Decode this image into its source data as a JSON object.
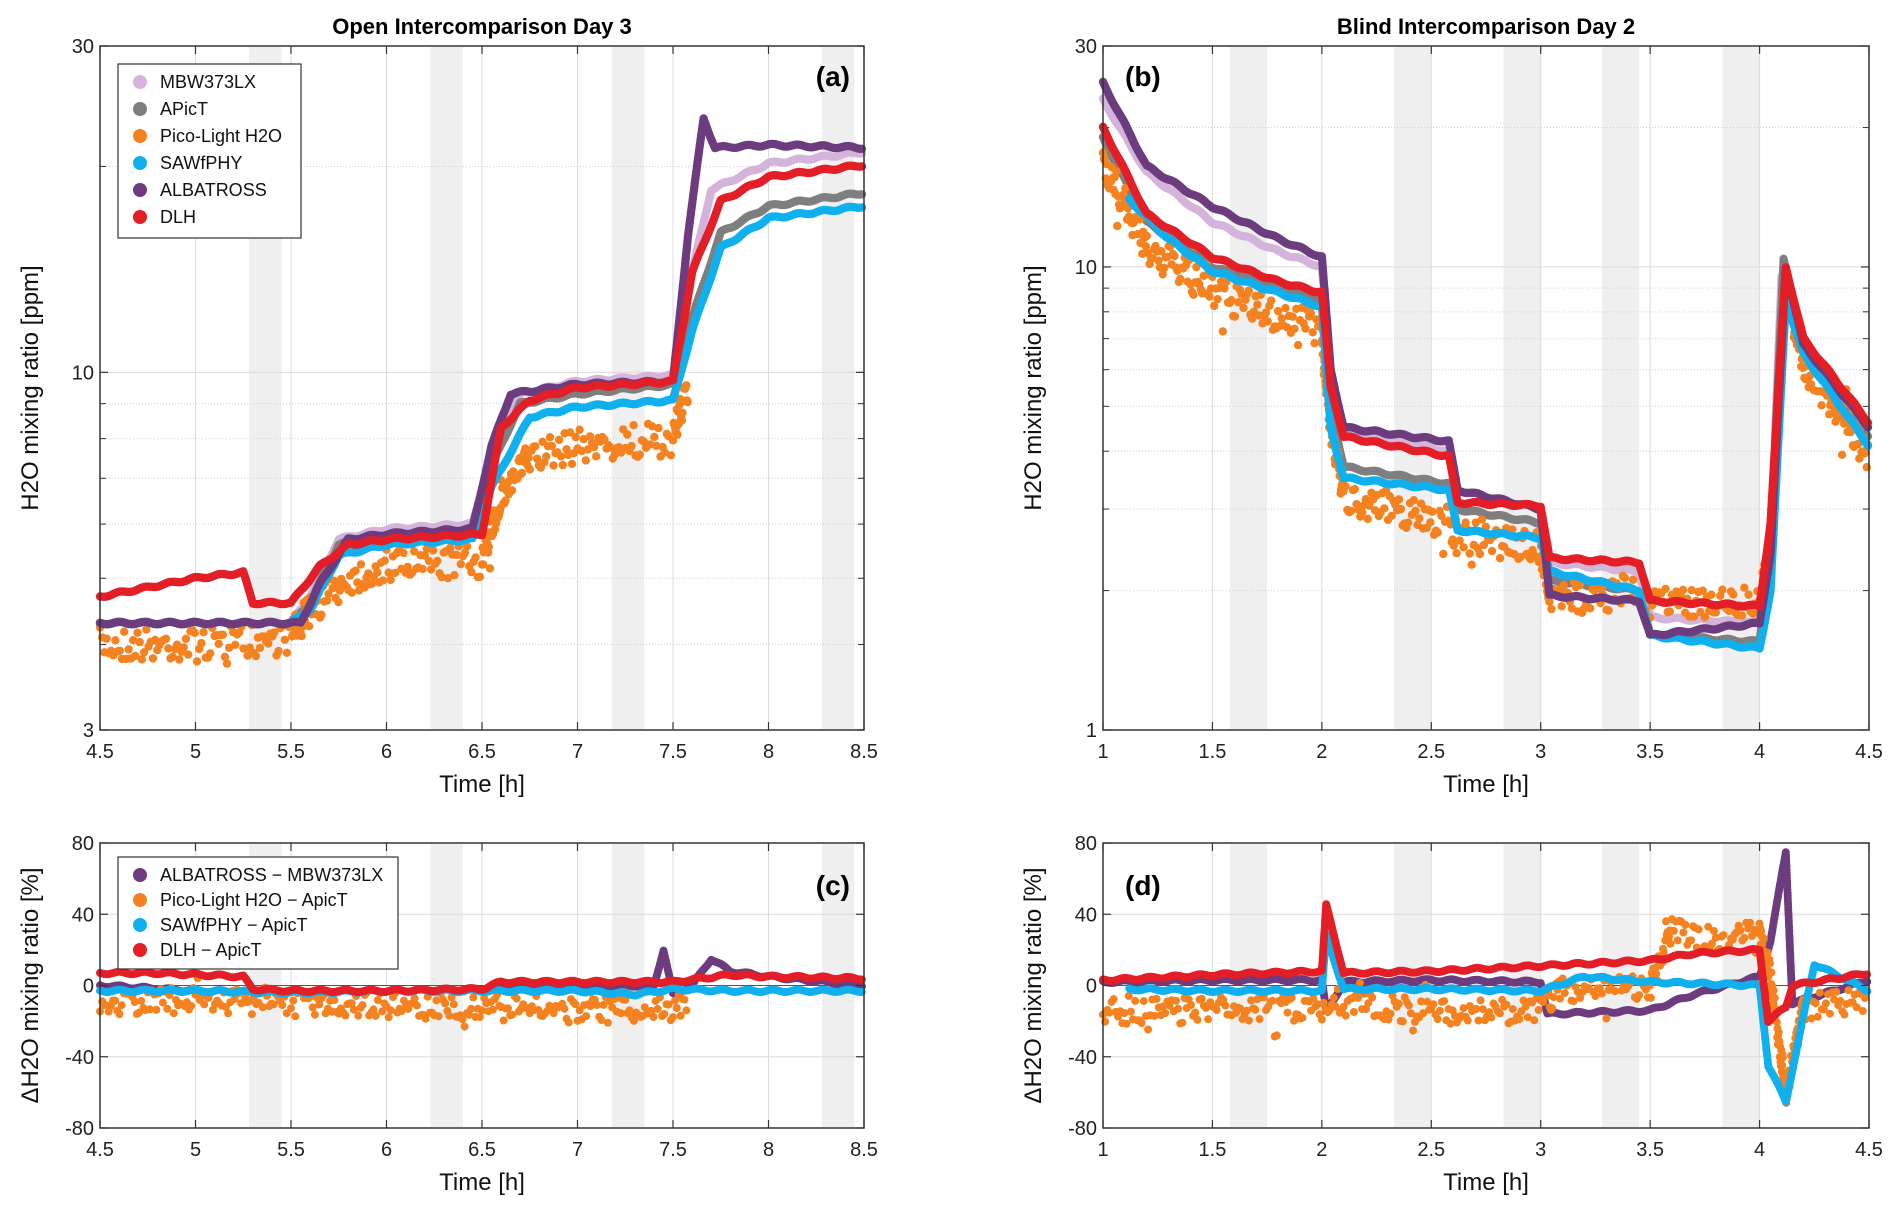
{
  "chart_data": [
    {
      "id": "a",
      "type": "scatter",
      "title": "Open Intercomparison Day 3",
      "panel_label": "(a)",
      "xlabel": "Time [h]",
      "ylabel": "H2O mixing ratio [ppm]",
      "yscale": "log",
      "xlim": [
        4.5,
        8.5
      ],
      "ylim": [
        3,
        30
      ],
      "xticks": [
        4.5,
        5,
        5.5,
        6,
        6.5,
        7,
        7.5,
        8,
        8.5
      ],
      "xtick_labels": [
        "4.5",
        "5",
        "5.5",
        "6",
        "6.5",
        "7",
        "7.5",
        "8",
        "8.5"
      ],
      "yticks": [
        3,
        10,
        30
      ],
      "ytick_labels": [
        "3",
        "10",
        "30"
      ],
      "yminor_grid": [
        4,
        5,
        6,
        7,
        8,
        9,
        20
      ],
      "grid": true,
      "legend_position": "top-left",
      "shaded_intervals": [
        [
          5.28,
          5.45
        ],
        [
          6.23,
          6.4
        ],
        [
          7.18,
          7.35
        ],
        [
          8.28,
          8.45
        ]
      ],
      "series": [
        {
          "name": "MBW373LX",
          "color": "#d5b4db",
          "x": [
            4.5,
            5.0,
            5.5,
            5.6,
            5.75,
            6.0,
            6.45,
            6.55,
            6.7,
            7.0,
            7.5,
            7.6,
            7.7,
            8.0,
            8.5
          ],
          "y": [
            4.3,
            4.3,
            4.3,
            4.7,
            5.7,
            5.9,
            6.0,
            7.5,
            9.3,
            9.7,
            9.9,
            14,
            18.5,
            20.2,
            21
          ]
        },
        {
          "name": "APicT",
          "color": "#7f7f7f",
          "x": [
            4.5,
            5.0,
            5.5,
            5.6,
            5.75,
            6.0,
            6.45,
            6.55,
            6.7,
            7.0,
            7.5,
            7.6,
            7.75,
            8.0,
            8.5
          ],
          "y": [
            4.3,
            4.3,
            4.3,
            4.6,
            5.6,
            5.8,
            5.9,
            7.3,
            9.0,
            9.3,
            9.6,
            12,
            16,
            17.5,
            18.3
          ]
        },
        {
          "name": "Pico-Light H2O",
          "color": "#f58220",
          "x": [
            4.5,
            4.8,
            5.1,
            5.5,
            5.6,
            5.8,
            6.0,
            6.5,
            6.6,
            6.75,
            7.0,
            7.5,
            7.58
          ],
          "y": [
            4.0,
            4.0,
            4.0,
            4.1,
            4.5,
            5.0,
            5.2,
            5.3,
            6.6,
            7.5,
            7.8,
            8.0,
            9.5
          ]
        },
        {
          "name": "SAWfPHY",
          "color": "#10b0ee",
          "x": [
            4.5,
            5.0,
            5.5,
            5.6,
            5.75,
            6.0,
            6.45,
            6.55,
            6.75,
            7.0,
            7.5,
            7.6,
            7.75,
            8.0,
            8.5
          ],
          "y": [
            4.3,
            4.3,
            4.3,
            4.5,
            5.4,
            5.6,
            5.7,
            6.8,
            8.6,
            8.9,
            9.1,
            11.5,
            15.2,
            16.8,
            17.5
          ]
        },
        {
          "name": "ALBATROSS",
          "color": "#6c3c7e",
          "x": [
            4.5,
            5.0,
            5.55,
            5.65,
            5.8,
            6.0,
            6.45,
            6.55,
            6.65,
            7.0,
            7.5,
            7.58,
            7.66,
            7.72,
            8.0,
            8.5
          ],
          "y": [
            4.3,
            4.3,
            4.3,
            4.9,
            5.7,
            5.8,
            5.9,
            7.8,
            9.3,
            9.6,
            9.7,
            16,
            23.5,
            21.3,
            21.5,
            21.3
          ]
        },
        {
          "name": "DLH",
          "color": "#e31e26",
          "x": [
            4.5,
            5.0,
            5.25,
            5.3,
            5.5,
            5.65,
            5.8,
            6.0,
            6.5,
            6.6,
            6.75,
            7.0,
            7.5,
            7.6,
            7.75,
            8.0,
            8.5
          ],
          "y": [
            4.7,
            5.0,
            5.1,
            4.6,
            4.6,
            5.2,
            5.6,
            5.7,
            5.8,
            8.3,
            9.1,
            9.5,
            9.7,
            14,
            17.8,
            19.3,
            20.1
          ]
        }
      ]
    },
    {
      "id": "b",
      "type": "scatter",
      "title": "Blind Intercomparison Day 2",
      "panel_label": "(b)",
      "xlabel": "Time [h]",
      "ylabel": "H2O mixing ratio [ppm]",
      "yscale": "log",
      "xlim": [
        1,
        4.5
      ],
      "ylim": [
        1,
        30
      ],
      "xticks": [
        1,
        1.5,
        2,
        2.5,
        3,
        3.5,
        4,
        4.5
      ],
      "xtick_labels": [
        "1",
        "1.5",
        "2",
        "2.5",
        "3",
        "3.5",
        "4",
        "4.5"
      ],
      "yticks": [
        1,
        10,
        30
      ],
      "ytick_labels": [
        "1",
        "10",
        "30"
      ],
      "yminor_grid": [
        2,
        3,
        4,
        5,
        6,
        7,
        8,
        9,
        20
      ],
      "grid": true,
      "legend_position": "none",
      "shaded_intervals": [
        [
          1.58,
          1.75
        ],
        [
          2.33,
          2.5
        ],
        [
          2.83,
          3.0
        ],
        [
          3.28,
          3.45
        ],
        [
          3.83,
          4.0
        ]
      ],
      "series": [
        {
          "name": "MBW373LX",
          "color": "#d5b4db",
          "x": [
            1.0,
            1.2,
            1.5,
            1.8,
            2.0,
            2.04,
            2.1,
            2.58,
            2.62,
            3.0,
            3.04,
            3.45,
            3.5,
            4.0,
            4.05,
            4.1,
            4.2,
            4.5
          ],
          "y": [
            23,
            16,
            12.5,
            10.8,
            10.0,
            6,
            4.4,
            4.0,
            3.3,
            3.0,
            2.3,
            2.2,
            1.75,
            1.7,
            2.4,
            9.5,
            6.8,
            4.5
          ]
        },
        {
          "name": "APicT",
          "color": "#7f7f7f",
          "x": [
            1.0,
            1.2,
            1.5,
            1.8,
            2.0,
            2.04,
            2.1,
            2.58,
            2.62,
            3.0,
            3.04,
            3.45,
            3.5,
            4.0,
            4.05,
            4.11,
            4.2,
            4.5
          ],
          "y": [
            19,
            12.5,
            10,
            9.0,
            8.5,
            5,
            3.7,
            3.4,
            3.0,
            2.8,
            2.1,
            2.0,
            1.6,
            1.55,
            2.5,
            10.4,
            6.6,
            4.3
          ]
        },
        {
          "name": "Pico-Light H2O",
          "color": "#f58220",
          "x": [
            1.0,
            1.2,
            1.5,
            1.8,
            2.0,
            2.04,
            2.1,
            2.58,
            2.62,
            3.0,
            3.04,
            3.45,
            3.5,
            4.0,
            4.05,
            4.12,
            4.2,
            4.5
          ],
          "y": [
            17,
            11,
            8.8,
            7.8,
            7.3,
            4.5,
            3.2,
            2.8,
            2.6,
            2.5,
            1.9,
            2.0,
            1.9,
            1.9,
            2.5,
            9,
            6.2,
            3.9
          ]
        },
        {
          "name": "SAWfPHY",
          "color": "#10b0ee",
          "x": [
            1.12,
            1.3,
            1.5,
            1.8,
            2.0,
            2.04,
            2.1,
            2.58,
            2.62,
            3.0,
            3.04,
            3.45,
            3.5,
            4.0,
            4.05,
            4.12,
            4.2,
            4.5
          ],
          "y": [
            14,
            11.5,
            9.8,
            8.8,
            8.2,
            4.5,
            3.5,
            3.3,
            2.7,
            2.6,
            2.2,
            2.0,
            1.6,
            1.5,
            2.0,
            8.5,
            6.5,
            4.1
          ]
        },
        {
          "name": "ALBATROSS",
          "color": "#6c3c7e",
          "x": [
            1.0,
            1.2,
            1.5,
            1.8,
            2.0,
            2.04,
            2.1,
            2.58,
            2.62,
            3.0,
            3.04,
            3.45,
            3.5,
            4.0,
            4.05,
            4.12,
            4.2,
            4.5
          ],
          "y": [
            25,
            16.5,
            13.5,
            11.5,
            10.5,
            6,
            4.5,
            4.2,
            3.3,
            3.0,
            1.95,
            1.9,
            1.6,
            1.7,
            2.4,
            10,
            6.8,
            4.5
          ]
        },
        {
          "name": "DLH",
          "color": "#e31e26",
          "x": [
            1.0,
            1.2,
            1.5,
            1.8,
            2.0,
            2.04,
            2.1,
            2.58,
            2.62,
            3.0,
            3.04,
            3.45,
            3.5,
            4.0,
            4.05,
            4.12,
            4.2,
            4.5
          ],
          "y": [
            20,
            13,
            10.5,
            9.3,
            8.8,
            5.5,
            4.3,
            3.9,
            3.1,
            3.05,
            2.35,
            2.3,
            1.9,
            1.85,
            2.8,
            10,
            7.0,
            4.6
          ]
        }
      ]
    },
    {
      "id": "c",
      "type": "scatter",
      "title": "",
      "panel_label": "(c)",
      "xlabel": "Time [h]",
      "ylabel": "ΔH2O mixing ratio [%]",
      "yscale": "linear",
      "xlim": [
        4.5,
        8.5
      ],
      "ylim": [
        -80,
        80
      ],
      "xticks": [
        4.5,
        5,
        5.5,
        6,
        6.5,
        7,
        7.5,
        8,
        8.5
      ],
      "xtick_labels": [
        "4.5",
        "5",
        "5.5",
        "6",
        "6.5",
        "7",
        "7.5",
        "8",
        "8.5"
      ],
      "yticks": [
        -80,
        -40,
        0,
        40,
        80
      ],
      "ytick_labels": [
        "-80",
        "-40",
        "0",
        "40",
        "80"
      ],
      "grid": true,
      "legend_position": "top-left",
      "shaded_intervals": [
        [
          5.28,
          5.45
        ],
        [
          6.23,
          6.4
        ],
        [
          7.18,
          7.35
        ],
        [
          8.28,
          8.45
        ]
      ],
      "series": [
        {
          "name": "ALBATROSS − MBW373LX",
          "color": "#6c3c7e",
          "x": [
            4.5,
            5.0,
            5.5,
            6.0,
            6.5,
            7.0,
            7.4,
            7.45,
            7.5,
            7.6,
            7.7,
            7.8,
            8.0,
            8.5
          ],
          "y": [
            0,
            -3,
            -4,
            -3,
            -2,
            0,
            0,
            20,
            -5,
            0,
            15,
            8,
            5,
            0
          ]
        },
        {
          "name": "Pico-Light H2O − ApicT",
          "color": "#f58220",
          "x": [
            4.5,
            5.0,
            5.5,
            6.0,
            6.5,
            7.0,
            7.5,
            7.58
          ],
          "y": [
            -10,
            -8,
            -10,
            -11,
            -12,
            -14,
            -13,
            -12
          ]
        },
        {
          "name": "SAWfPHY − ApicT",
          "color": "#10b0ee",
          "x": [
            4.5,
            5.0,
            5.5,
            6.0,
            6.5,
            7.0,
            7.3,
            7.5,
            7.8,
            8.0,
            8.5
          ],
          "y": [
            -3,
            -3,
            -4,
            -3,
            -3,
            -3,
            -5,
            -2,
            -3,
            -3,
            -3
          ]
        },
        {
          "name": "DLH − ApicT",
          "color": "#e31e26",
          "x": [
            4.5,
            4.8,
            5.25,
            5.3,
            5.5,
            6.0,
            6.5,
            6.6,
            7.0,
            7.5,
            7.8,
            8.0,
            8.5
          ],
          "y": [
            7,
            7,
            5,
            -2,
            -3,
            -3,
            -2,
            2,
            2,
            2,
            6,
            5,
            4
          ]
        }
      ]
    },
    {
      "id": "d",
      "type": "scatter",
      "title": "",
      "panel_label": "(d)",
      "xlabel": "Time [h]",
      "ylabel": "ΔH2O mixing ratio [%]",
      "yscale": "linear",
      "xlim": [
        1,
        4.5
      ],
      "ylim": [
        -80,
        80
      ],
      "xticks": [
        1,
        1.5,
        2,
        2.5,
        3,
        3.5,
        4,
        4.5
      ],
      "xtick_labels": [
        "1",
        "1.5",
        "2",
        "2.5",
        "3",
        "3.5",
        "4",
        "4.5"
      ],
      "yticks": [
        -80,
        -40,
        0,
        40,
        80
      ],
      "ytick_labels": [
        "-80",
        "-40",
        "0",
        "40",
        "80"
      ],
      "grid": true,
      "legend_position": "none",
      "shaded_intervals": [
        [
          1.58,
          1.75
        ],
        [
          2.33,
          2.5
        ],
        [
          2.83,
          3.0
        ],
        [
          3.28,
          3.45
        ],
        [
          3.83,
          4.0
        ]
      ],
      "series": [
        {
          "name": "ALBATROSS − MBW373LX",
          "color": "#6c3c7e",
          "x": [
            1.0,
            1.5,
            2.0,
            2.02,
            2.1,
            2.5,
            3.0,
            3.03,
            3.5,
            3.7,
            4.0,
            4.05,
            4.12,
            4.15,
            4.5
          ],
          "y": [
            2,
            3,
            3,
            -15,
            2,
            3,
            2,
            -16,
            -14,
            -5,
            5,
            25,
            75,
            -10,
            3
          ]
        },
        {
          "name": "Pico-Light H2O − ApicT",
          "color": "#f58220",
          "x": [
            1.0,
            1.5,
            2.0,
            2.1,
            2.5,
            3.0,
            3.1,
            3.5,
            3.6,
            3.8,
            4.0,
            4.05,
            4.12,
            4.2,
            4.5
          ],
          "y": [
            -15,
            -14,
            -12,
            -10,
            -15,
            -14,
            -2,
            -2,
            30,
            25,
            30,
            5,
            -60,
            -12,
            -8
          ]
        },
        {
          "name": "SAWfPHY − ApicT",
          "color": "#10b0ee",
          "x": [
            1.12,
            1.5,
            2.0,
            2.02,
            2.1,
            2.5,
            3.0,
            3.2,
            3.5,
            4.0,
            4.04,
            4.12,
            4.25,
            4.5
          ],
          "y": [
            -2,
            -3,
            -3,
            28,
            -2,
            -2,
            -3,
            5,
            2,
            0,
            -45,
            -65,
            12,
            -3
          ]
        },
        {
          "name": "DLH − ApicT",
          "color": "#e31e26",
          "x": [
            1.0,
            1.5,
            2.0,
            2.02,
            2.1,
            2.5,
            3.0,
            3.5,
            3.7,
            4.0,
            4.04,
            4.12,
            4.15,
            4.5
          ],
          "y": [
            3,
            6,
            8,
            45,
            7,
            8,
            11,
            14,
            18,
            20,
            -20,
            -12,
            0,
            7
          ]
        }
      ]
    }
  ]
}
